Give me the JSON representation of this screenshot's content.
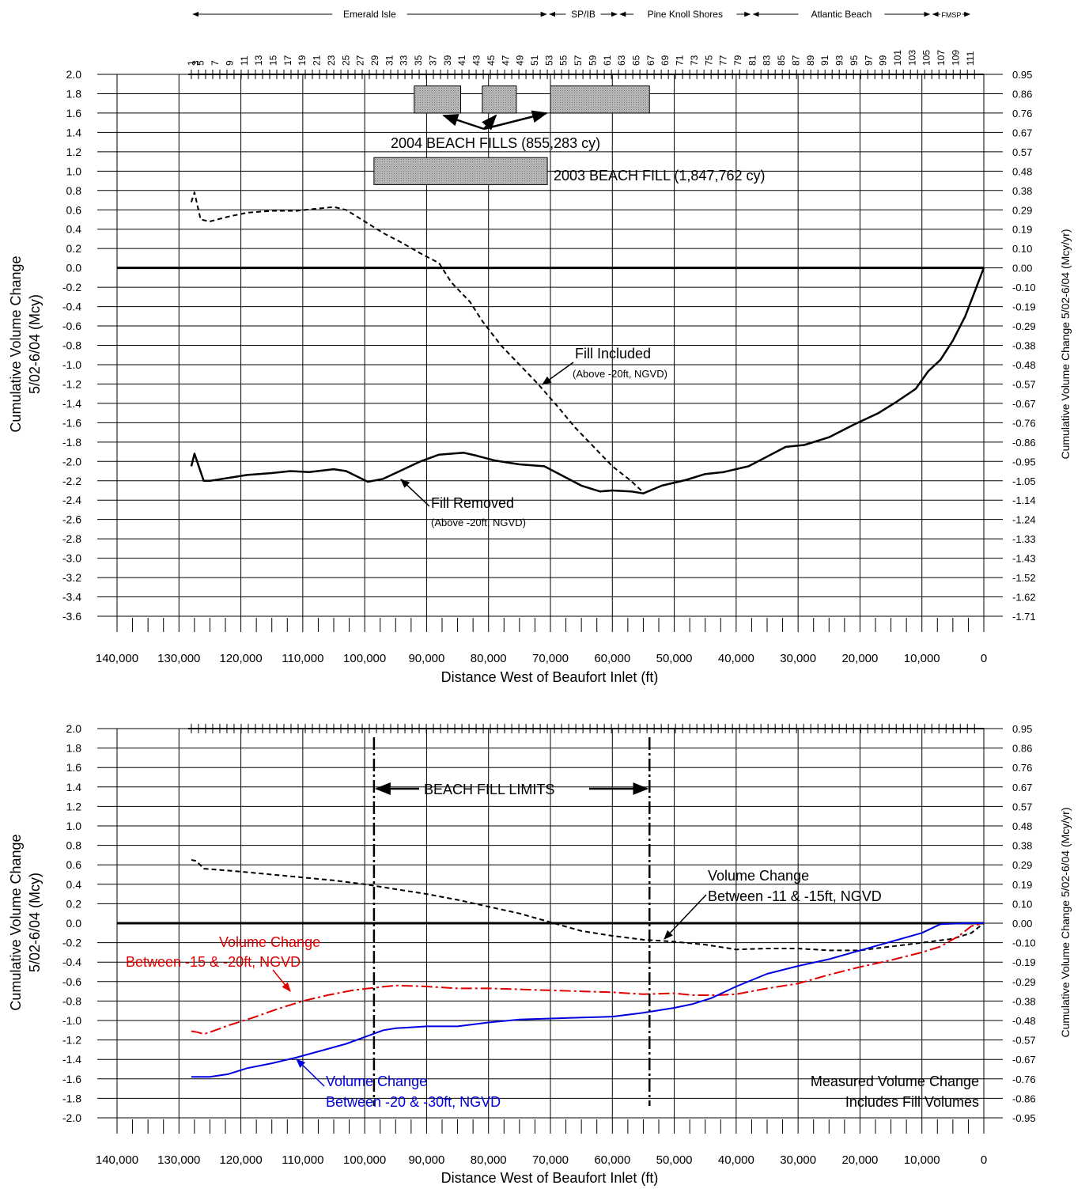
{
  "regions": [
    {
      "label": "Emerald Isle",
      "from": 128000,
      "to": 70400
    },
    {
      "label": "SP/IB",
      "from": 70400,
      "to": 59000
    },
    {
      "label": "Pine Knoll Shores",
      "from": 59000,
      "to": 37500
    },
    {
      "label": "Atlantic Beach",
      "from": 37500,
      "to": 8500
    },
    {
      "label": "FMSP",
      "from": 8500,
      "to": 2000
    }
  ],
  "profile_numbers": [
    "1",
    "3",
    "5",
    "7",
    "9",
    "11",
    "13",
    "15",
    "17",
    "19",
    "21",
    "23",
    "25",
    "27",
    "29",
    "31",
    "33",
    "35",
    "37",
    "39",
    "41",
    "43",
    "45",
    "47",
    "49",
    "51",
    "53",
    "55",
    "57",
    "59",
    "61",
    "63",
    "65",
    "67",
    "69",
    "71",
    "73",
    "75",
    "77",
    "79",
    "81",
    "83",
    "85",
    "87",
    "89",
    "91",
    "93",
    "95",
    "97",
    "99",
    "101",
    "103",
    "105",
    "107",
    "109",
    "111"
  ],
  "chart_data": [
    {
      "type": "line",
      "xlabel": "Distance West of Beaufort Inlet (ft)",
      "ylabel": [
        "Cumulative Volume Change",
        "5/02-6/04 (Mcy)"
      ],
      "y2label": "Cumulative Volume Change 5/02-6/04 (Mcy/yr)",
      "xlim": [
        140000,
        0
      ],
      "ylim": [
        -3.6,
        2.0
      ],
      "ystep": 0.2,
      "y_ticks": [
        "2.0",
        "1.8",
        "1.6",
        "1.4",
        "1.2",
        "1.0",
        "0.8",
        "0.6",
        "0.4",
        "0.2",
        "0.0",
        "-0.2",
        "-0.4",
        "-0.6",
        "-0.8",
        "-1.0",
        "-1.2",
        "-1.4",
        "-1.6",
        "-1.8",
        "-2.0",
        "-2.2",
        "-2.4",
        "-2.6",
        "-2.8",
        "-3.0",
        "-3.2",
        "-3.4",
        "-3.6"
      ],
      "y2_ticks": [
        "0.95",
        "0.86",
        "0.76",
        "0.67",
        "0.57",
        "0.48",
        "0.38",
        "0.29",
        "0.19",
        "0.10",
        "0.00",
        "-0.10",
        "-0.19",
        "-0.29",
        "-0.38",
        "-0.48",
        "-0.57",
        "-0.67",
        "-0.76",
        "-0.86",
        "-0.95",
        "-1.05",
        "-1.14",
        "-1.24",
        "-1.33",
        "-1.43",
        "-1.52",
        "-1.62",
        "-1.71"
      ],
      "x_ticks": [
        "140,000",
        "130,000",
        "120,000",
        "110,000",
        "100,000",
        "90,000",
        "80,000",
        "70,000",
        "60,000",
        "50,000",
        "40,000",
        "30,000",
        "20,000",
        "10,000",
        "0"
      ],
      "grid": true,
      "series": [
        {
          "color": "#000000",
          "dash": "6,4",
          "width": 2,
          "x": [
            128000,
            127500,
            126500,
            125000,
            122000,
            119000,
            115000,
            111000,
            108000,
            105000,
            103000,
            100000,
            97000,
            94000,
            91000,
            88000,
            86000,
            83000,
            81000,
            78000,
            75000,
            72000,
            69000,
            66000,
            63000,
            60000,
            57000,
            55000
          ],
          "y": [
            0.68,
            0.78,
            0.5,
            0.48,
            0.53,
            0.57,
            0.59,
            0.59,
            0.61,
            0.63,
            0.6,
            0.48,
            0.36,
            0.26,
            0.15,
            0.05,
            -0.15,
            -0.35,
            -0.55,
            -0.8,
            -1.0,
            -1.2,
            -1.42,
            -1.65,
            -1.85,
            -2.05,
            -2.2,
            -2.32
          ]
        },
        {
          "color": "#000000",
          "dash": "",
          "width": 2.5,
          "x": [
            128000,
            127500,
            126800,
            126000,
            125000,
            122000,
            119000,
            115000,
            112000,
            109000,
            105000,
            103000,
            99500,
            97000,
            94000,
            91000,
            88000,
            86000,
            84000,
            82000,
            79000,
            75000,
            71000,
            68000,
            65000,
            62000,
            60000,
            57000,
            55000,
            52000,
            48000,
            45000,
            42000,
            38000,
            35000,
            32000,
            29000,
            25000,
            21000,
            17000,
            14000,
            11000,
            9000,
            7000,
            5000,
            3000,
            1500,
            0
          ],
          "y": [
            -2.05,
            -1.92,
            -2.05,
            -2.2,
            -2.2,
            -2.17,
            -2.14,
            -2.12,
            -2.1,
            -2.11,
            -2.08,
            -2.1,
            -2.21,
            -2.18,
            -2.09,
            -2.0,
            -1.93,
            -1.92,
            -1.91,
            -1.94,
            -1.99,
            -2.03,
            -2.05,
            -2.15,
            -2.25,
            -2.31,
            -2.3,
            -2.31,
            -2.33,
            -2.25,
            -2.19,
            -2.13,
            -2.11,
            -2.05,
            -1.95,
            -1.85,
            -1.83,
            -1.75,
            -1.62,
            -1.5,
            -1.38,
            -1.25,
            -1.07,
            -0.95,
            -0.75,
            -0.5,
            -0.25,
            0.0
          ]
        }
      ],
      "fills": [
        {
          "from": 92000,
          "to": 84500,
          "top": 1.88,
          "bottom": 1.6
        },
        {
          "from": 81000,
          "to": 75500,
          "top": 1.88,
          "bottom": 1.6
        },
        {
          "from": 70000,
          "to": 54000,
          "top": 1.88,
          "bottom": 1.6
        },
        {
          "from": 98500,
          "to": 70500,
          "top": 1.14,
          "bottom": 0.86
        }
      ],
      "annotations": {
        "fills_2004": "2004 BEACH FILLS (855,283 cy)",
        "fill_2003": "2003 BEACH FILL (1,847,762 cy)",
        "fill_included": "Fill Included",
        "fill_included_sub": "(Above -20ft, NGVD)",
        "fill_removed": "Fill Removed",
        "fill_removed_sub": "(Above -20ft, NGVD)"
      }
    },
    {
      "type": "line",
      "xlabel": "Distance West of Beaufort Inlet (ft)",
      "ylabel": [
        "Cumulative Volume Change",
        "5/02-6/04 (Mcy)"
      ],
      "y2label": "Cumulative Volume Change 5/02-6/04 (Mcy/yr)",
      "xlim": [
        140000,
        0
      ],
      "ylim": [
        -2.0,
        2.0
      ],
      "ystep": 0.2,
      "y_ticks": [
        "2.0",
        "1.8",
        "1.6",
        "1.4",
        "1.2",
        "1.0",
        "0.8",
        "0.6",
        "0.4",
        "0.2",
        "0.0",
        "-0.2",
        "-0.4",
        "-0.6",
        "-0.8",
        "-1.0",
        "-1.2",
        "-1.4",
        "-1.6",
        "-1.8",
        "-2.0"
      ],
      "y2_ticks": [
        "0.95",
        "0.86",
        "0.76",
        "0.67",
        "0.57",
        "0.48",
        "0.38",
        "0.29",
        "0.19",
        "0.10",
        "0.00",
        "-0.10",
        "-0.19",
        "-0.29",
        "-0.38",
        "-0.48",
        "-0.57",
        "-0.67",
        "-0.76",
        "-0.86",
        "-0.95"
      ],
      "x_ticks": [
        "140,000",
        "130,000",
        "120,000",
        "110,000",
        "100,000",
        "90,000",
        "80,000",
        "70,000",
        "60,000",
        "50,000",
        "40,000",
        "30,000",
        "20,000",
        "10,000",
        "0"
      ],
      "grid": true,
      "series": [
        {
          "color": "#000000",
          "dash": "6,4",
          "width": 2,
          "x": [
            128000,
            127200,
            126000,
            124000,
            120000,
            115000,
            110000,
            105000,
            100000,
            95000,
            90000,
            85000,
            80000,
            75000,
            70000,
            65000,
            60000,
            55000,
            50000,
            45000,
            40000,
            35000,
            30000,
            25000,
            20000,
            15000,
            10000,
            5000,
            2000,
            0
          ],
          "y": [
            0.65,
            0.64,
            0.56,
            0.55,
            0.53,
            0.5,
            0.47,
            0.44,
            0.4,
            0.35,
            0.3,
            0.24,
            0.17,
            0.1,
            0.01,
            -0.08,
            -0.13,
            -0.17,
            -0.19,
            -0.22,
            -0.27,
            -0.26,
            -0.26,
            -0.28,
            -0.28,
            -0.24,
            -0.2,
            -0.16,
            -0.1,
            0.0
          ]
        },
        {
          "color": "#e00000",
          "dash": "14,4,3,4",
          "width": 2,
          "x": [
            128000,
            127000,
            126000,
            125000,
            122000,
            118000,
            114000,
            110000,
            106000,
            102000,
            98000,
            95000,
            90000,
            85000,
            80000,
            75000,
            70000,
            65000,
            60000,
            55000,
            50000,
            47000,
            43000,
            40000,
            35000,
            30000,
            25000,
            20000,
            15000,
            10000,
            7000,
            4000,
            2000,
            0
          ],
          "y": [
            -1.11,
            -1.12,
            -1.14,
            -1.12,
            -1.05,
            -0.97,
            -0.88,
            -0.8,
            -0.74,
            -0.69,
            -0.66,
            -0.64,
            -0.65,
            -0.67,
            -0.67,
            -0.68,
            -0.69,
            -0.7,
            -0.71,
            -0.73,
            -0.72,
            -0.74,
            -0.74,
            -0.73,
            -0.67,
            -0.62,
            -0.53,
            -0.45,
            -0.38,
            -0.3,
            -0.24,
            -0.13,
            -0.03,
            0.0
          ]
        },
        {
          "color": "#0000e0",
          "dash": "",
          "width": 2,
          "x": [
            128000,
            125000,
            122000,
            119000,
            115000,
            111000,
            107000,
            103000,
            100000,
            97000,
            95000,
            90000,
            85000,
            80000,
            75000,
            70000,
            65000,
            60000,
            55000,
            50000,
            47000,
            44000,
            40000,
            35000,
            30000,
            25000,
            20000,
            15000,
            10000,
            7000,
            3000,
            0
          ],
          "y": [
            -1.58,
            -1.58,
            -1.55,
            -1.49,
            -1.44,
            -1.38,
            -1.31,
            -1.24,
            -1.17,
            -1.1,
            -1.08,
            -1.06,
            -1.06,
            -1.02,
            -0.99,
            -0.98,
            -0.97,
            -0.96,
            -0.92,
            -0.87,
            -0.83,
            -0.77,
            -0.65,
            -0.52,
            -0.44,
            -0.37,
            -0.28,
            -0.19,
            -0.1,
            -0.01,
            0.0,
            0.0
          ]
        }
      ],
      "fill_limits": {
        "from": 98500,
        "to": 54000,
        "label": "BEACH FILL LIMITS"
      },
      "annotations": {
        "black_line1": "Volume Change",
        "black_line2": "Between -11 & -15ft, NGVD",
        "red_line1": "Volume Change",
        "red_line2": "Between -15 & -20ft, NGVD",
        "blue_line1": "Volume Change",
        "blue_line2": "Between -20 & -30ft, NGVD",
        "note_line1": "Measured Volume Change",
        "note_line2": "Includes Fill Volumes"
      }
    }
  ]
}
